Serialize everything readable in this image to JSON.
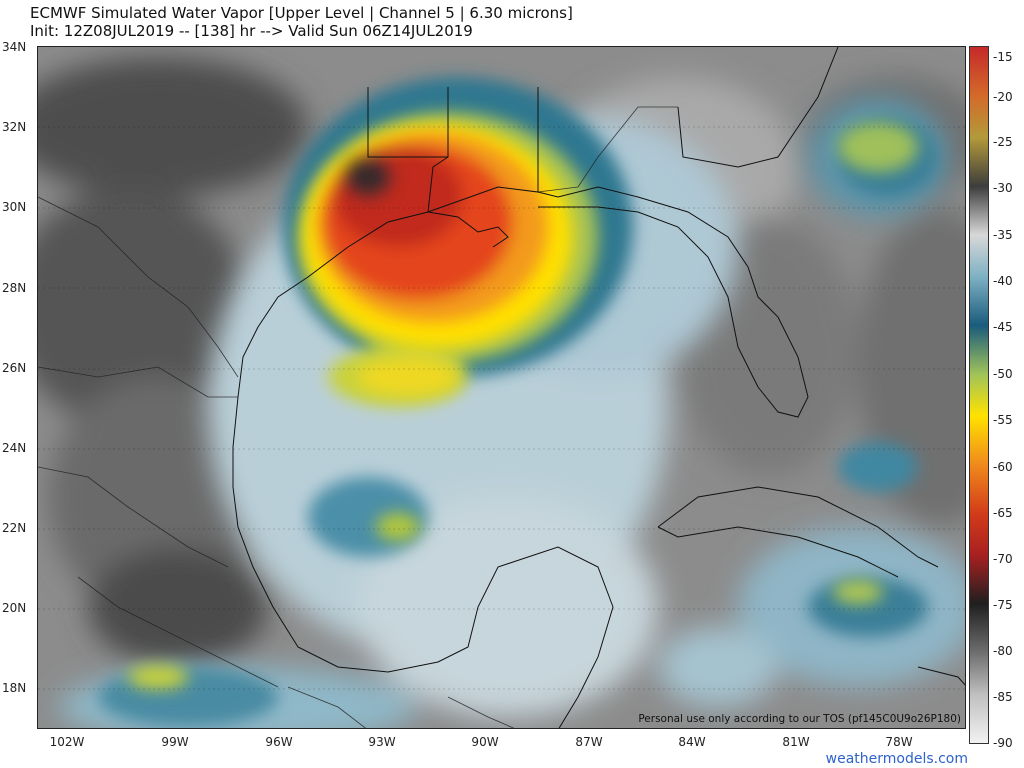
{
  "header": {
    "title": "ECMWF Simulated Water Vapor [Upper Level | Channel 5 | 6.30 microns]",
    "subtitle": "Init: 12Z08JUL2019 -- [138] hr --> Valid Sun 06Z14JUL2019"
  },
  "map": {
    "lat_labels": [
      "34N",
      "32N",
      "30N",
      "28N",
      "26N",
      "24N",
      "22N",
      "20N",
      "18N"
    ],
    "lon_labels": [
      "102W",
      "99W",
      "96W",
      "93W",
      "90W",
      "87W",
      "84W",
      "81W",
      "78W"
    ],
    "notice": "Personal use only according to our TOS (pf145C0U9o26P180)"
  },
  "colorbar": {
    "ticks": [
      "-15",
      "-20",
      "-25",
      "-30",
      "-35",
      "-40",
      "-45",
      "-50",
      "-55",
      "-60",
      "-65",
      "-70",
      "-75",
      "-80",
      "-85",
      "-90"
    ],
    "colors": [
      "#c62a2a",
      "#d36a2a",
      "#b39a3a",
      "#3d3d3d",
      "#d8d8d8",
      "#7eb1c4",
      "#1a5b7c",
      "#a0c35a",
      "#ffe200",
      "#f08a1c",
      "#d23c1a",
      "#a82020",
      "#1f1f1f",
      "#6e6e6e",
      "#bfbfbf",
      "#f2f2f2"
    ]
  },
  "footer": {
    "credit": "weathermodels.com"
  }
}
